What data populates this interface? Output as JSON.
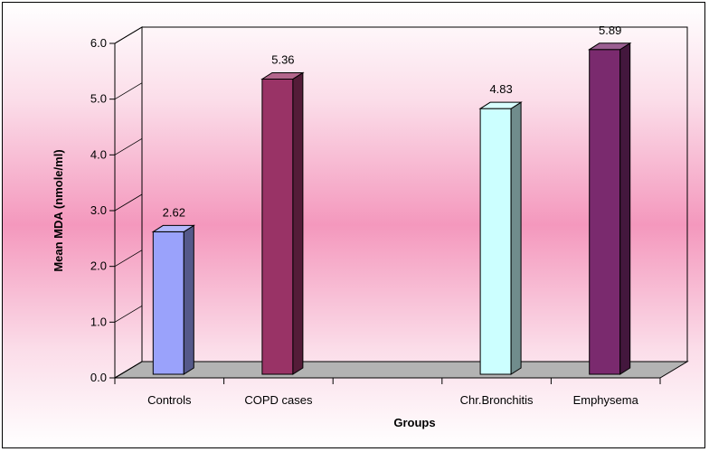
{
  "chart_data": {
    "type": "bar",
    "title": "",
    "xlabel": "Groups",
    "ylabel": "Mean MDA (nmole/ml)",
    "ylim": [
      0,
      6
    ],
    "yticks": [
      "0.0",
      "1.0",
      "2.0",
      "3.0",
      "4.0",
      "5.0",
      "6.0"
    ],
    "grid": false,
    "legend": "none",
    "categories": [
      "Controls",
      "COPD cases",
      "",
      "Chr.Bronchitis",
      "Emphysema"
    ],
    "values": [
      2.62,
      5.36,
      null,
      4.83,
      5.89
    ],
    "data_labels": [
      "2.62",
      "5.36",
      "",
      "4.83",
      "5.89"
    ],
    "colors": [
      "#9aa2fb",
      "#993366",
      "",
      "#ccffff",
      "#7a2a6e"
    ],
    "background": [
      "#ffffff",
      "#f498bd"
    ],
    "style": "3d-column"
  }
}
